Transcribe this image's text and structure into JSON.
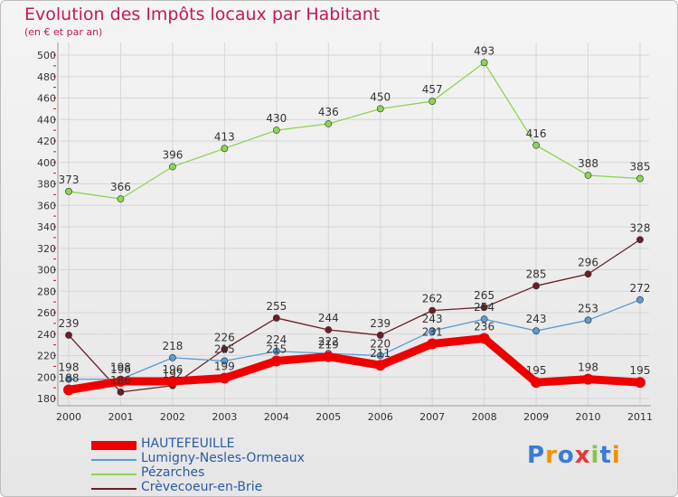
{
  "header": {
    "title": "Evolution des Impôts locaux par Habitant",
    "subtitle": "(en € et par an)"
  },
  "logo": {
    "text": "Proxiti"
  },
  "chart_data": {
    "type": "line",
    "title": "Evolution des Impôts locaux par Habitant",
    "subtitle": "(en € et par an)",
    "xlabel": "",
    "ylabel": "",
    "ylim": [
      180,
      500
    ],
    "ytick_step": 20,
    "grid": true,
    "legend_position": "bottom-left",
    "categories": [
      "2000",
      "2001",
      "2002",
      "2003",
      "2004",
      "2005",
      "2006",
      "2007",
      "2008",
      "2009",
      "2010",
      "2011"
    ],
    "series": [
      {
        "name": "HAUTEFEUILLE",
        "color": "#ee0000",
        "width": "thick",
        "values": [
          188,
          196,
          196,
          199,
          215,
          219,
          211,
          231,
          236,
          195,
          198,
          195
        ],
        "labels": [
          "188",
          "196",
          "196",
          "199",
          "215",
          "219",
          "211",
          "231",
          "236",
          "195",
          "198",
          "195"
        ]
      },
      {
        "name": "Lumigny-Nesles-Ormeaux",
        "color": "#5b9bd5",
        "width": "thin",
        "values": [
          198,
          198,
          218,
          215,
          224,
          222,
          220,
          243,
          254,
          243,
          253,
          272
        ],
        "labels": [
          "198",
          "198",
          "218",
          "215",
          "224",
          "222",
          "220",
          "243",
          "254",
          "243",
          "253",
          "272"
        ]
      },
      {
        "name": "Pézarches",
        "color": "#8ed452",
        "width": "thin",
        "values": [
          373,
          366,
          396,
          413,
          430,
          436,
          450,
          457,
          493,
          416,
          388,
          385
        ],
        "labels": [
          "373",
          "366",
          "396",
          "413",
          "430",
          "436",
          "450",
          "457",
          "493",
          "416",
          "388",
          "385"
        ]
      },
      {
        "name": "Crèvecoeur-en-Brie",
        "color": "#6b1f24",
        "width": "thin",
        "values": [
          239,
          186,
          192,
          226,
          255,
          244,
          239,
          262,
          265,
          285,
          296,
          328
        ],
        "labels": [
          "239",
          "186",
          "192",
          "226",
          "255",
          "244",
          "239",
          "262",
          "265",
          "285",
          "296",
          "328"
        ]
      }
    ]
  }
}
